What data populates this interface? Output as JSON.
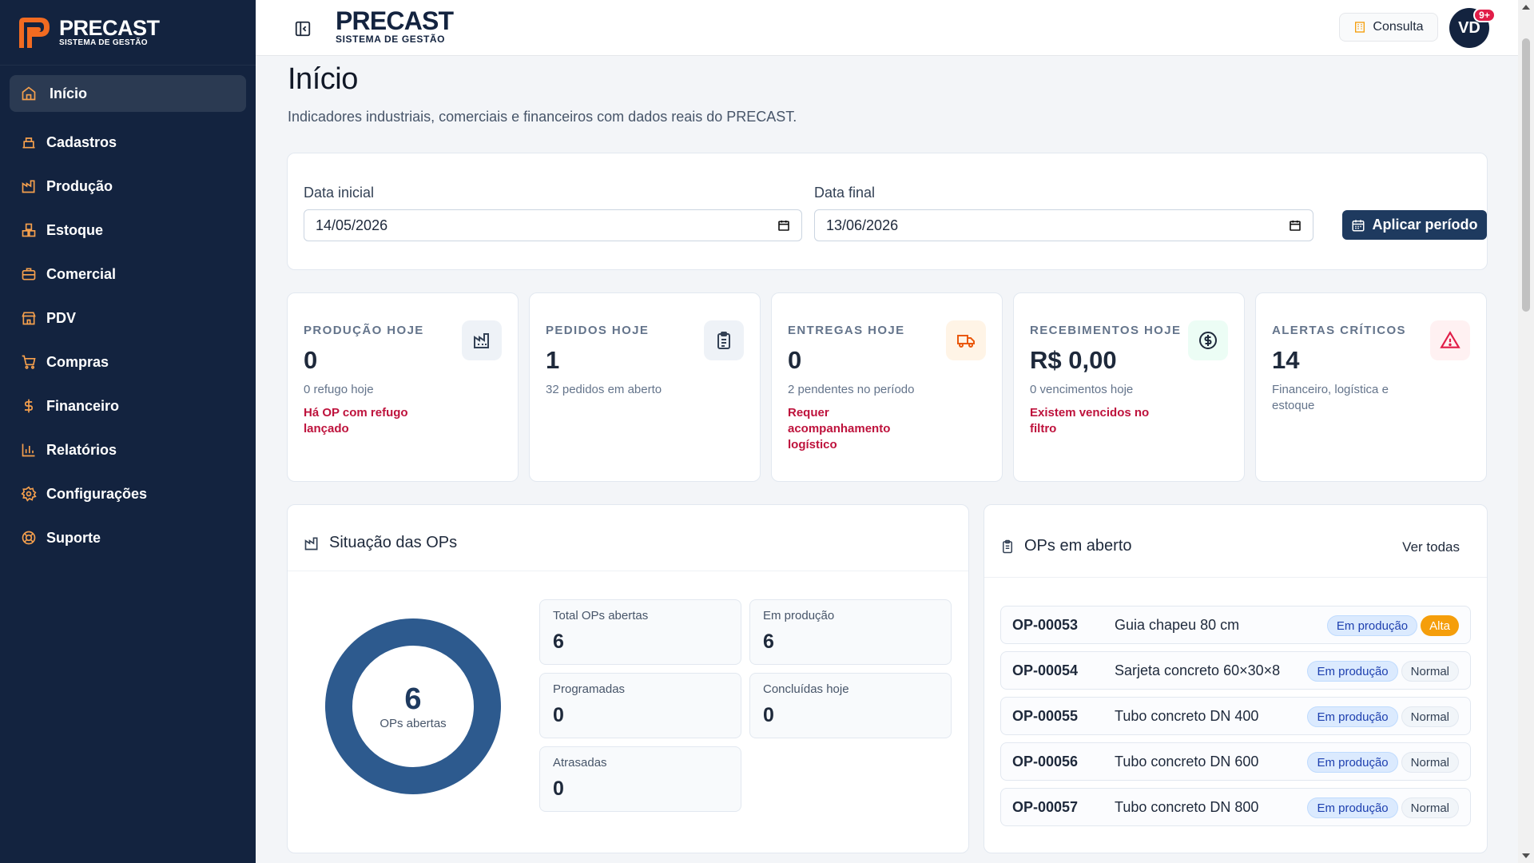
{
  "brand": {
    "name": "PRECAST",
    "tagline": "SISTEMA DE GESTÃO"
  },
  "sidebar": {
    "items": [
      {
        "label": "Início",
        "icon": "home-icon",
        "active": true
      },
      {
        "label": "Cadastros",
        "icon": "building-icon"
      },
      {
        "label": "Produção",
        "icon": "factory-icon"
      },
      {
        "label": "Estoque",
        "icon": "boxes-icon"
      },
      {
        "label": "Comercial",
        "icon": "briefcase-icon"
      },
      {
        "label": "PDV",
        "icon": "store-icon"
      },
      {
        "label": "Compras",
        "icon": "cart-icon"
      },
      {
        "label": "Financeiro",
        "icon": "dollar-icon"
      },
      {
        "label": "Relatórios",
        "icon": "bar-chart-icon"
      },
      {
        "label": "Configurações",
        "icon": "gear-icon"
      },
      {
        "label": "Suporte",
        "icon": "lifebuoy-icon"
      }
    ]
  },
  "topbar": {
    "consulta_label": "Consulta",
    "avatar_initials": "VD",
    "notification_count": "9+"
  },
  "page": {
    "title": "Início",
    "subtitle": "Indicadores industriais, comerciais e financeiros com dados reais do PRECAST."
  },
  "filters": {
    "start_label": "Data inicial",
    "start_value": "14/05/2026",
    "end_label": "Data final",
    "end_value": "13/06/2026",
    "apply_label": "Aplicar período"
  },
  "kpis": [
    {
      "title": "PRODUÇÃO HOJE",
      "value": "0",
      "sub": "0 refugo hoje",
      "alert": "Há OP com refugo lançado",
      "icon": "factory-icon",
      "icon_bg": "#eef2f7",
      "icon_color": "#334155"
    },
    {
      "title": "PEDIDOS HOJE",
      "value": "1",
      "sub": "32 pedidos em aberto",
      "alert": "",
      "icon": "clipboard-icon",
      "icon_bg": "#eef2f7",
      "icon_color": "#334155"
    },
    {
      "title": "ENTREGAS HOJE",
      "value": "0",
      "sub": "2 pendentes no período",
      "alert": "Requer acompanhamento logístico",
      "icon": "truck-icon",
      "icon_bg": "#fff4e6",
      "icon_color": "#ea580c"
    },
    {
      "title": "RECEBIMENTOS HOJE",
      "value": "R$ 0,00",
      "sub": "0 vencimentos hoje",
      "alert": "Existem vencidos no filtro",
      "icon": "dollar-circle-icon",
      "icon_bg": "#ecfdf5",
      "icon_color": "#1e293b"
    },
    {
      "title": "ALERTAS CRÍTICOS",
      "value": "14",
      "sub": "Financeiro, logística e estoque",
      "alert": "",
      "icon": "warning-icon",
      "icon_bg": "#fff1f2",
      "icon_color": "#e11d48"
    }
  ],
  "ops_status": {
    "title": "Situação das OPs",
    "donut_value": "6",
    "donut_label": "OPs abertas",
    "donut_color": "#2d5a8e",
    "stats": [
      {
        "label": "Total OPs abertas",
        "value": "6"
      },
      {
        "label": "Em produção",
        "value": "6"
      },
      {
        "label": "Programadas",
        "value": "0"
      },
      {
        "label": "Concluídas hoje",
        "value": "0"
      },
      {
        "label": "Atrasadas",
        "value": "0"
      }
    ]
  },
  "open_ops": {
    "title": "OPs em aberto",
    "view_all_label": "Ver todas",
    "rows": [
      {
        "code": "OP-00053",
        "product": "Guia chapeu 80 cm",
        "status": "Em produção",
        "priority": "Alta"
      },
      {
        "code": "OP-00054",
        "product": "Sarjeta concreto 60×30×8",
        "status": "Em produção",
        "priority": "Normal"
      },
      {
        "code": "OP-00055",
        "product": "Tubo concreto DN 400",
        "status": "Em produção",
        "priority": "Normal"
      },
      {
        "code": "OP-00056",
        "product": "Tubo concreto DN 600",
        "status": "Em produção",
        "priority": "Normal"
      },
      {
        "code": "OP-00057",
        "product": "Tubo concreto DN 800",
        "status": "Em produção",
        "priority": "Normal"
      }
    ]
  }
}
